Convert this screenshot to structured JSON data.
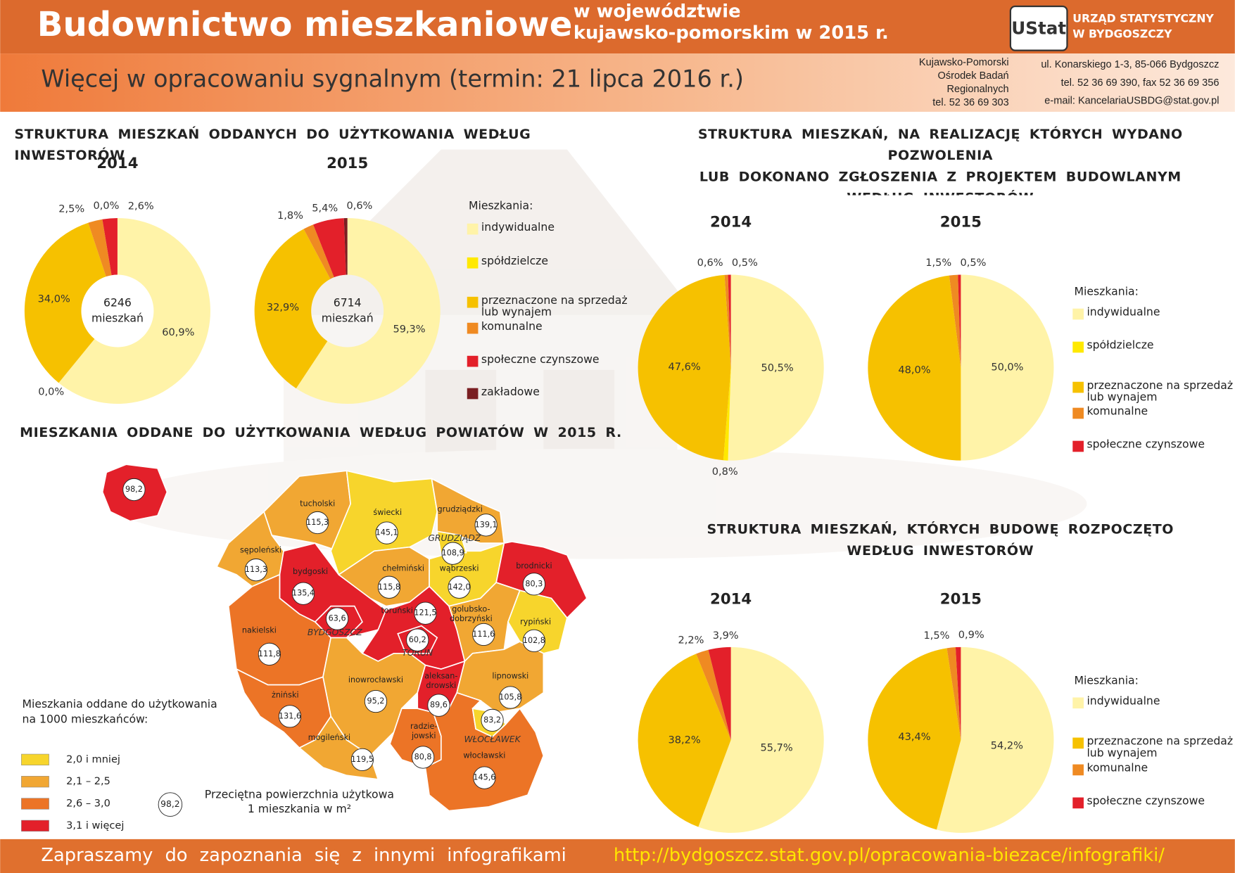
{
  "header": {
    "title": "Budownictwo mieszkaniowe",
    "subtitle": "w województwie\nkujawsko-pomorskim w 2015 r.",
    "logo_text": "UStat",
    "office": "URZĄD STATYSTYCZNY\nW BYDGOSZCZY",
    "info_line": "Więcej w opracowaniu sygnalnym (termin: 21 lipca 2016 r.)",
    "branch": "Kujawsko-Pomorski\nOśrodek Badań\nRegionalnych\ntel. 52 36 69 303",
    "address": "ul. Konarskiego 1-3, 85-066 Bydgoszcz\ntel. 52 36 69 390, fax 52 36 69 356\ne-mail: KancelariaUSBDG@stat.gov.pl"
  },
  "chart_data": [
    {
      "type": "donut",
      "title": "STRUKTURA MIESZKAŃ ODDANYCH DO UŻYTKOWANIA WEDŁUG INWESTORÓW",
      "legend_title": "Mieszkania:",
      "categories": [
        "indywidualne",
        "spółdzielcze",
        "przeznaczone na sprzedaż\nlub wynajem",
        "komunalne",
        "społeczne czynszowe",
        "zakładowe"
      ],
      "colors": [
        "#fff3a8",
        "#ffe900",
        "#f6c100",
        "#ef8a22",
        "#e3202a",
        "#7a1f22"
      ],
      "panels": [
        {
          "year": "2014",
          "total": 6246,
          "total_label": "mieszkań",
          "values": [
            60.9,
            0.0,
            34.0,
            2.5,
            2.6,
            0.0
          ],
          "value_labels": [
            "60,9%",
            "0,0%",
            "34,0%",
            "2,5%",
            "2,6%",
            "0,0%"
          ]
        },
        {
          "year": "2015",
          "total": 6714,
          "total_label": "mieszkań",
          "values": [
            59.3,
            null,
            32.9,
            1.8,
            5.4,
            0.6
          ],
          "value_labels": [
            "59,3%",
            null,
            "32,9%",
            "1,8%",
            "5,4%",
            "0,6%"
          ]
        }
      ]
    },
    {
      "type": "pie",
      "title": "STRUKTURA MIESZKAŃ, NA REALIZACJĘ KTÓRYCH WYDANO POZWOLENIA\nLUB DOKONANO ZGŁOSZENIA Z PROJEKTEM BUDOWLANYM\nWEDŁUG INWESTORÓW",
      "legend_title": "Mieszkania:",
      "categories": [
        "indywidualne",
        "spółdzielcze",
        "przeznaczone na sprzedaż\nlub wynajem",
        "komunalne",
        "społeczne czynszowe"
      ],
      "colors": [
        "#fff3a8",
        "#ffe900",
        "#f6c100",
        "#ef8a22",
        "#e3202a"
      ],
      "panels": [
        {
          "year": "2014",
          "values": [
            50.5,
            0.8,
            47.6,
            0.6,
            0.5
          ],
          "value_labels": [
            "50,5%",
            "0,8%",
            "47,6%",
            "0,6%",
            "0,5%"
          ]
        },
        {
          "year": "2015",
          "values": [
            50.0,
            null,
            48.0,
            1.5,
            0.5
          ],
          "value_labels": [
            "50,0%",
            null,
            "48,0%",
            "1,5%",
            "0,5%"
          ]
        }
      ]
    },
    {
      "type": "pie",
      "title": "STRUKTURA MIESZKAŃ, KTÓRYCH BUDOWĘ ROZPOCZĘTO\nWEDŁUG INWESTORÓW",
      "legend_title": "Mieszkania:",
      "categories": [
        "indywidualne",
        "przeznaczone na sprzedaż\nlub wynajem",
        "komunalne",
        "społeczne czynszowe"
      ],
      "colors": [
        "#fff3a8",
        "#f6c100",
        "#ef8a22",
        "#e3202a"
      ],
      "panels": [
        {
          "year": "2014",
          "values": [
            55.7,
            38.2,
            2.2,
            3.9
          ],
          "value_labels": [
            "55,7%",
            "38,2%",
            "2,2%",
            "3,9%"
          ]
        },
        {
          "year": "2015",
          "values": [
            54.2,
            43.4,
            1.5,
            0.9
          ],
          "value_labels": [
            "54,2%",
            "43,4%",
            "1,5%",
            "0,9%"
          ]
        }
      ]
    }
  ],
  "map": {
    "title": "MIESZKANIA ODDANE DO UŻYTKOWANIA WEDŁUG POWIATÓW W 2015 R.",
    "legend_title": "Mieszkania oddane do użytkowania\nna 1000 mieszkańców:",
    "classes": [
      {
        "label": "2,0 i mniej",
        "color": "#f7d52c"
      },
      {
        "label": "2,1 – 2,5",
        "color": "#f1a733"
      },
      {
        "label": "2,6 – 3,0",
        "color": "#ec7426"
      },
      {
        "label": "3,1 i więcej",
        "color": "#e3202a"
      }
    ],
    "circle_sample": "98,2",
    "circle_caption": "Przeciętna powierzchnia użytkowa\n1 mieszkania w m²",
    "regions": [
      {
        "value": "98,2",
        "class": 3
      },
      {
        "name": "tucholski",
        "value": "115,3",
        "class": 1
      },
      {
        "name": "świecki",
        "value": "145,1",
        "class": 0
      },
      {
        "name": "grudziądzki",
        "value": "139,1",
        "class": 1
      },
      {
        "name": "GRUDZIĄDZ",
        "value": "108,9",
        "class": 0,
        "city": true
      },
      {
        "name": "sępoleński",
        "value": "113,3",
        "class": 1
      },
      {
        "name": "bydgoski",
        "value": "135,4",
        "class": 3
      },
      {
        "name": "chełmiński",
        "value": "115,8",
        "class": 1
      },
      {
        "name": "wąbrzeski",
        "value": "142,0",
        "class": 0
      },
      {
        "name": "brodnicki",
        "value": "80,3",
        "class": 3
      },
      {
        "name": "BYDGOSZCZ",
        "value": "63,6",
        "class": 3,
        "city": true
      },
      {
        "name": "toruński",
        "value": "121,5",
        "class": 3
      },
      {
        "name": "TORUŃ",
        "value": "60,2",
        "class": 3,
        "city": true
      },
      {
        "name": "golubsko-\ndobrzyński",
        "value": "111,6",
        "class": 1
      },
      {
        "name": "rypiński",
        "value": "102,8",
        "class": 0
      },
      {
        "name": "nakielski",
        "value": "111,8",
        "class": 2
      },
      {
        "name": "inowrocławski",
        "value": "95,2",
        "class": 1
      },
      {
        "name": "aleksan-\ndrowski",
        "value": "89,6",
        "class": 3
      },
      {
        "name": "lipnowski",
        "value": "105,8",
        "class": 1
      },
      {
        "name": "żniński",
        "value": "131,6",
        "class": 2
      },
      {
        "name": "WŁOCŁAWEK",
        "value": "83,2",
        "class": 0,
        "city": true
      },
      {
        "name": "mogileński",
        "value": "119,5",
        "class": 1
      },
      {
        "name": "radzie-\njowski",
        "value": "80,8",
        "class": 2
      },
      {
        "name": "włocławski",
        "value": "145,6",
        "class": 2
      }
    ]
  },
  "footer": {
    "text": "Zapraszamy do zapoznania się z innymi infografikami",
    "link": "http://bydgoszcz.stat.gov.pl/opracowania-biezace/infografiki/"
  }
}
